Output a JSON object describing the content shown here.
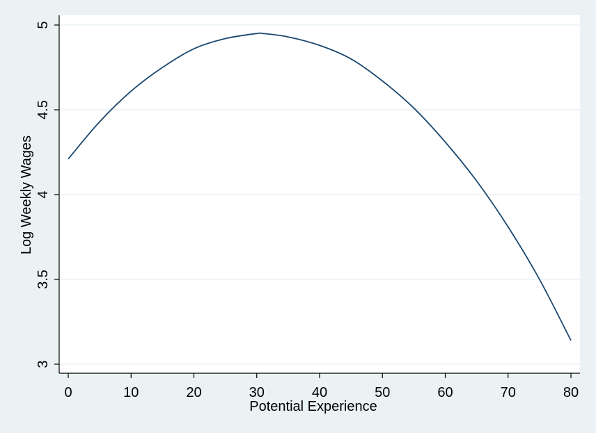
{
  "chart_data": {
    "type": "line",
    "title": "",
    "xlabel": "Potential Experience",
    "ylabel": "Log Weekly Wages",
    "xlim": [
      0,
      80
    ],
    "ylim": [
      3,
      5
    ],
    "xticks": [
      0,
      10,
      20,
      30,
      40,
      50,
      60,
      70,
      80
    ],
    "xtick_labels": [
      "0",
      "10",
      "20",
      "30",
      "40",
      "50",
      "60",
      "70",
      "80"
    ],
    "yticks": [
      3,
      3.5,
      4,
      4.5,
      5
    ],
    "ytick_labels": [
      "3",
      "3.5",
      "4",
      "4.5",
      "5"
    ],
    "ytick_label_rotation": "vertical",
    "grid": "horizontal",
    "legend": "none",
    "series": [
      {
        "x": [
          0,
          5,
          10,
          15,
          20,
          25,
          30,
          31,
          35,
          40,
          45,
          50,
          55,
          60,
          65,
          70,
          75,
          80
        ],
        "y": [
          4.21,
          4.43,
          4.61,
          4.75,
          4.86,
          4.92,
          4.95,
          4.95,
          4.93,
          4.88,
          4.8,
          4.67,
          4.51,
          4.31,
          4.08,
          3.81,
          3.5,
          3.14
        ]
      }
    ],
    "colors": {
      "background": "#eaf2f3",
      "plot_area": "#ffffff",
      "line": "#1a476f",
      "grid": "#eaf2f3",
      "axis": "#000000"
    }
  }
}
